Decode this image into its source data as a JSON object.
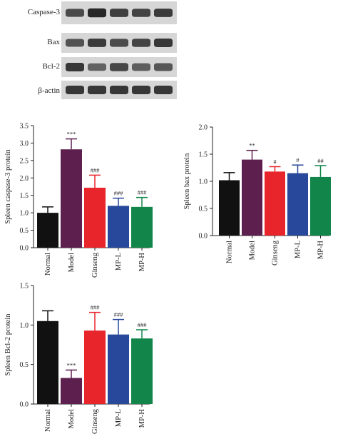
{
  "blot": {
    "labels": [
      "Caspase-3",
      "Bax",
      "Bcl-2",
      "β-actin"
    ],
    "band_intensity": [
      [
        0.72,
        0.9,
        0.78,
        0.76,
        0.8
      ],
      [
        0.68,
        0.8,
        0.72,
        0.76,
        0.82
      ],
      [
        0.82,
        0.6,
        0.74,
        0.62,
        0.66
      ],
      [
        0.82,
        0.82,
        0.82,
        0.82,
        0.82
      ]
    ]
  },
  "colors": {
    "Normal": "#111111",
    "Model": "#5c1f4e",
    "Ginseng": "#e8252a",
    "MP-L": "#27489b",
    "MP-H": "#12864a"
  },
  "chart_data": [
    {
      "type": "bar",
      "categories": [
        "Normal",
        "Model",
        "Ginseng",
        "MP-L",
        "MP-H"
      ],
      "values": [
        1.0,
        2.82,
        1.72,
        1.2,
        1.17
      ],
      "errors": [
        0.17,
        0.3,
        0.36,
        0.22,
        0.27
      ],
      "annotations": [
        "",
        "***",
        "###",
        "###",
        "###"
      ],
      "ylabel": "Spleen caspase-3 protein",
      "ylim": [
        0,
        3.5
      ],
      "yticks": [
        "0.0",
        "0.5",
        "1.0",
        "1.5",
        "2.0",
        "2.5",
        "3.0",
        "3.5"
      ]
    },
    {
      "type": "bar",
      "categories": [
        "Normal",
        "Model",
        "Ginseng",
        "MP-L",
        "MP-H"
      ],
      "values": [
        1.02,
        1.4,
        1.18,
        1.15,
        1.08
      ],
      "errors": [
        0.14,
        0.17,
        0.09,
        0.15,
        0.21
      ],
      "annotations": [
        "",
        "**",
        "#",
        "#",
        "##"
      ],
      "ylabel": "Spleen bax protein",
      "ylim": [
        0,
        2.0
      ],
      "yticks": [
        "0.0",
        "0.5",
        "1.0",
        "1.5",
        "2.0"
      ]
    },
    {
      "type": "bar",
      "categories": [
        "Normal",
        "Model",
        "Ginseng",
        "MP-L",
        "MP-H"
      ],
      "values": [
        1.05,
        0.33,
        0.93,
        0.88,
        0.83
      ],
      "errors": [
        0.13,
        0.1,
        0.23,
        0.19,
        0.11
      ],
      "annotations": [
        "",
        "***",
        "###",
        "###",
        "###"
      ],
      "ylabel": "Spleen Bcl-2 protein",
      "ylim": [
        0,
        1.5
      ],
      "yticks": [
        "0.0",
        "0.5",
        "1.0",
        "1.5"
      ]
    }
  ]
}
